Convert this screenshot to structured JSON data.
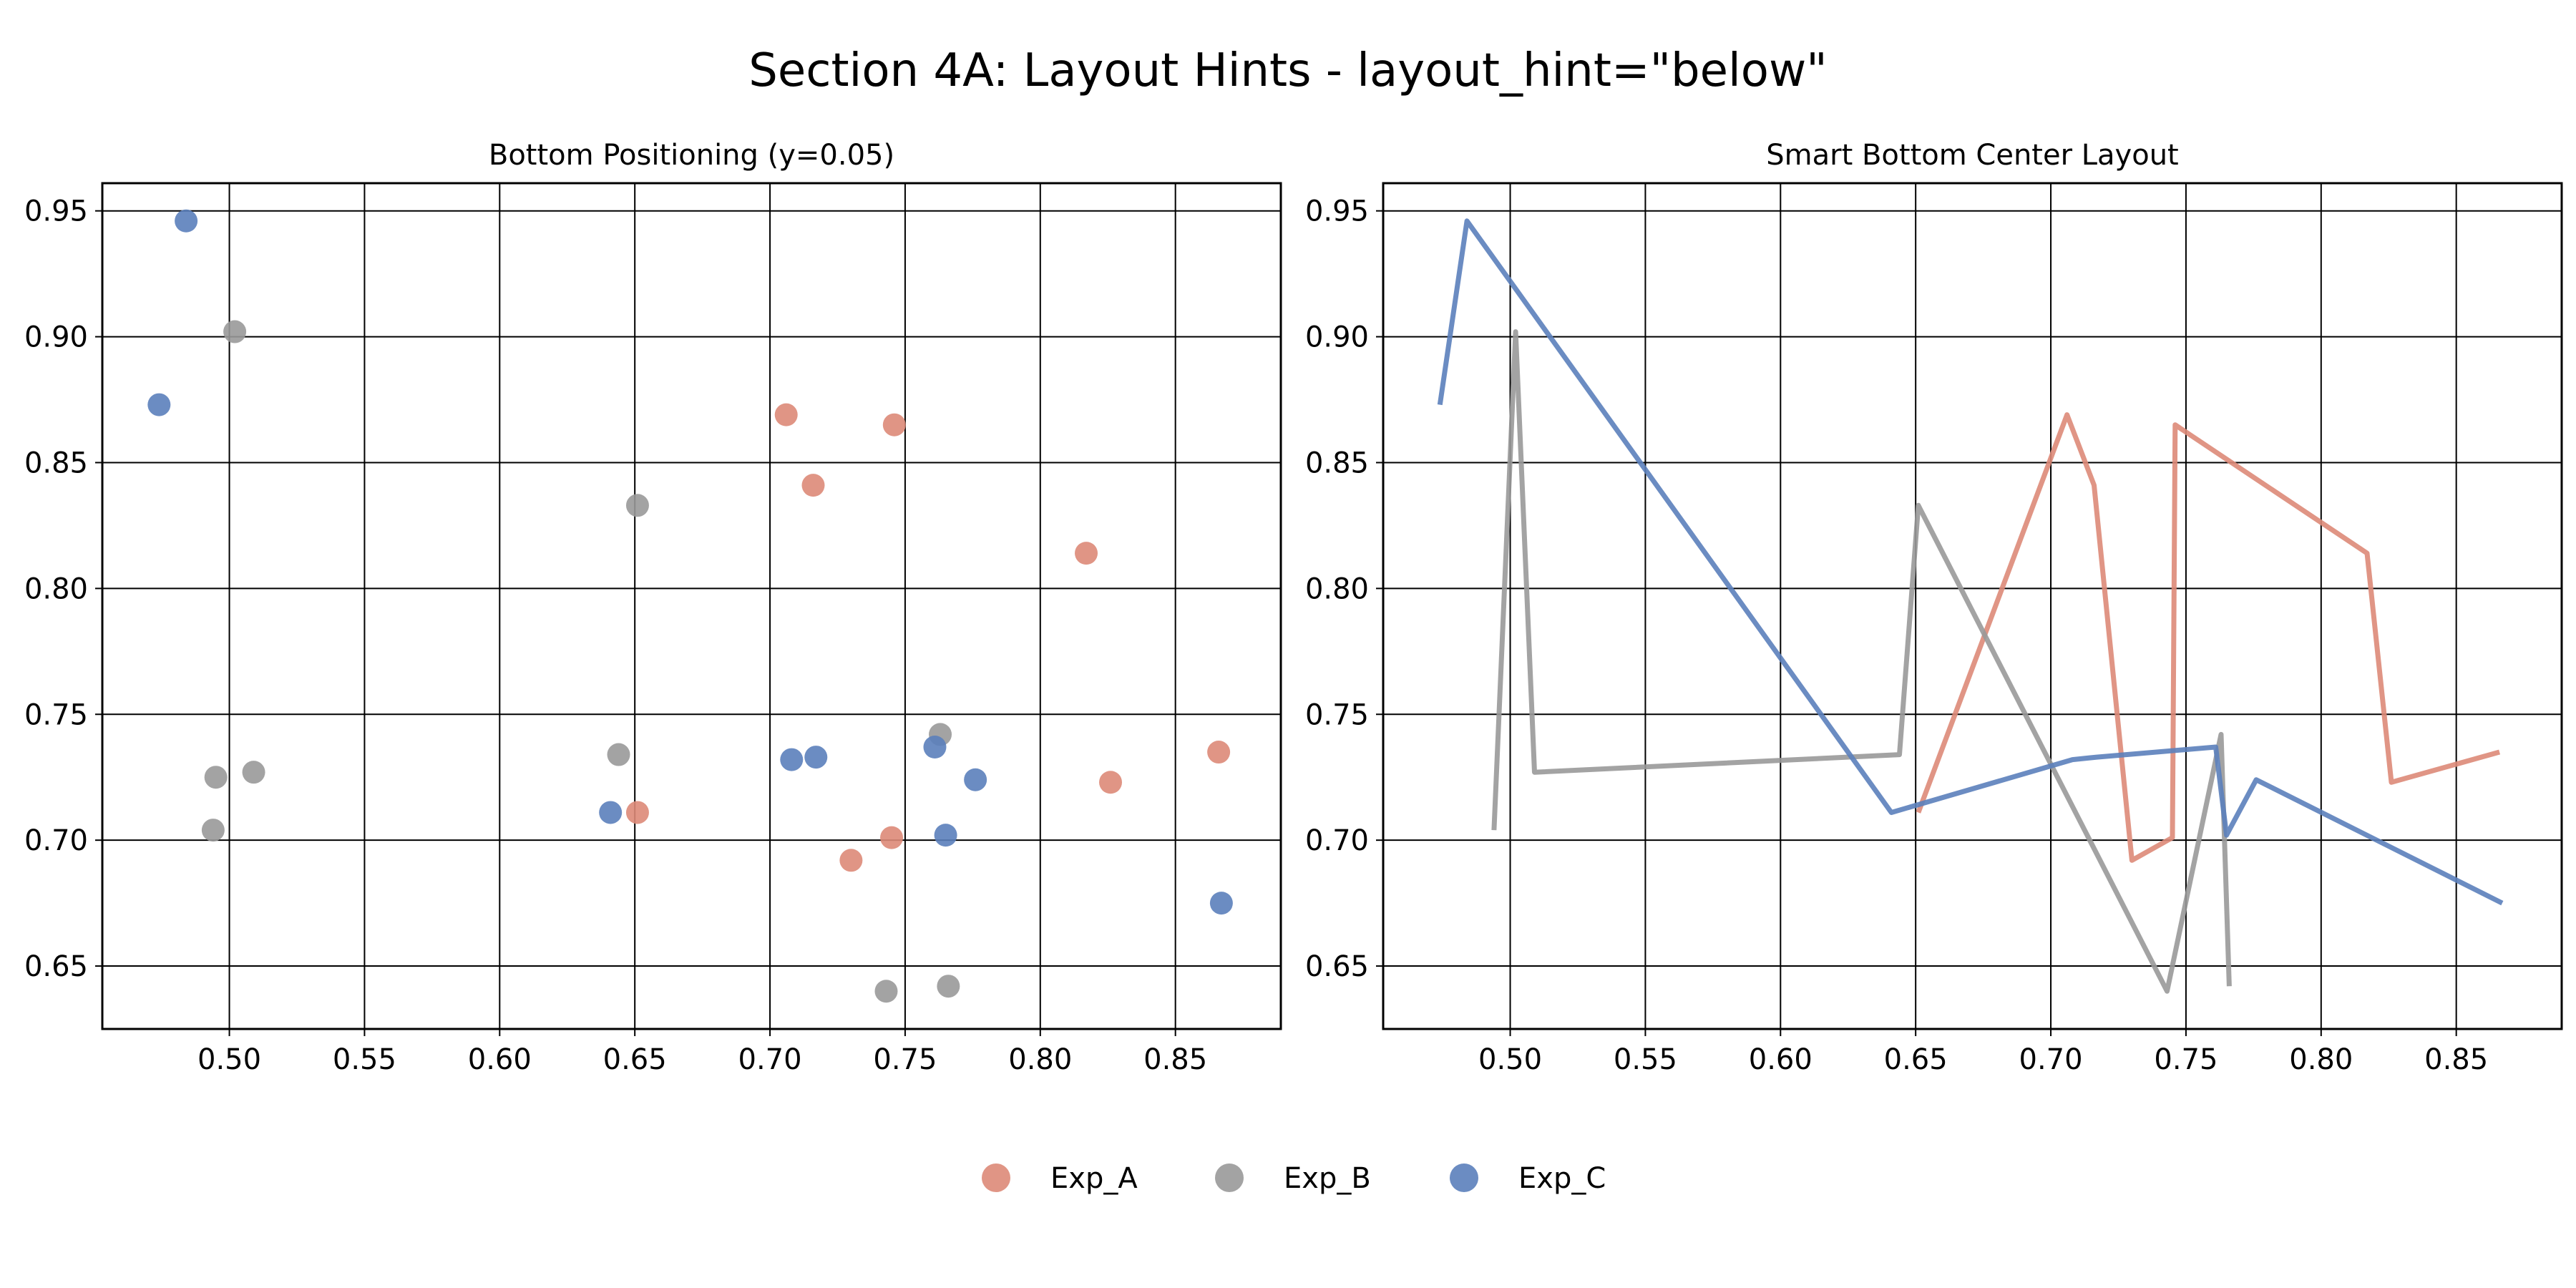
{
  "figure_title": "Section 4A: Layout Hints - layout_hint=\"below\"",
  "legend": {
    "placement": "bottom-center, below plots",
    "entries": [
      {
        "label": "Exp_A",
        "color": "#dd8a78"
      },
      {
        "label": "Exp_B",
        "color": "#999999"
      },
      {
        "label": "Exp_C",
        "color": "#5b7fbb"
      }
    ]
  },
  "chart_data": [
    {
      "type": "scatter",
      "title": "Bottom Positioning (y=0.05)",
      "xlabel": "",
      "ylabel": "",
      "xlim": [
        0.453,
        0.889
      ],
      "ylim": [
        0.625,
        0.961
      ],
      "xticks": [
        "0.50",
        "0.55",
        "0.60",
        "0.65",
        "0.70",
        "0.75",
        "0.80",
        "0.85"
      ],
      "yticks": [
        "0.65",
        "0.70",
        "0.75",
        "0.80",
        "0.85",
        "0.90",
        "0.95"
      ],
      "grid": true,
      "series": [
        {
          "name": "Exp_A",
          "color": "#dd8a78",
          "x": [
            0.651,
            0.706,
            0.716,
            0.73,
            0.745,
            0.746,
            0.817,
            0.826,
            0.866
          ],
          "y": [
            0.711,
            0.869,
            0.841,
            0.692,
            0.701,
            0.865,
            0.814,
            0.723,
            0.735
          ]
        },
        {
          "name": "Exp_B",
          "color": "#999999",
          "x": [
            0.494,
            0.495,
            0.502,
            0.509,
            0.644,
            0.651,
            0.743,
            0.763,
            0.766
          ],
          "y": [
            0.704,
            0.725,
            0.902,
            0.727,
            0.734,
            0.833,
            0.64,
            0.742,
            0.642
          ]
        },
        {
          "name": "Exp_C",
          "color": "#5b7fbb",
          "x": [
            0.474,
            0.484,
            0.641,
            0.708,
            0.717,
            0.761,
            0.765,
            0.776,
            0.867
          ],
          "y": [
            0.873,
            0.946,
            0.711,
            0.732,
            0.733,
            0.737,
            0.702,
            0.724,
            0.675
          ]
        }
      ]
    },
    {
      "type": "line",
      "title": "Smart Bottom Center Layout",
      "xlabel": "",
      "ylabel": "",
      "xlim": [
        0.453,
        0.889
      ],
      "ylim": [
        0.625,
        0.961
      ],
      "xticks": [
        "0.50",
        "0.55",
        "0.60",
        "0.65",
        "0.70",
        "0.75",
        "0.80",
        "0.85"
      ],
      "yticks": [
        "0.65",
        "0.70",
        "0.75",
        "0.80",
        "0.85",
        "0.90",
        "0.95"
      ],
      "grid": true,
      "series": [
        {
          "name": "Exp_A",
          "color": "#dd8a78",
          "x": [
            0.651,
            0.706,
            0.716,
            0.73,
            0.745,
            0.746,
            0.817,
            0.826,
            0.866
          ],
          "y": [
            0.711,
            0.869,
            0.841,
            0.692,
            0.701,
            0.865,
            0.814,
            0.723,
            0.735
          ]
        },
        {
          "name": "Exp_B",
          "color": "#999999",
          "x": [
            0.494,
            0.502,
            0.509,
            0.644,
            0.651,
            0.743,
            0.763,
            0.766
          ],
          "y": [
            0.704,
            0.902,
            0.727,
            0.734,
            0.833,
            0.64,
            0.742,
            0.642
          ]
        },
        {
          "name": "Exp_C",
          "color": "#5b7fbb",
          "x": [
            0.474,
            0.484,
            0.641,
            0.708,
            0.717,
            0.761,
            0.765,
            0.776,
            0.867
          ],
          "y": [
            0.873,
            0.946,
            0.711,
            0.732,
            0.733,
            0.737,
            0.702,
            0.724,
            0.675
          ]
        }
      ]
    }
  ]
}
